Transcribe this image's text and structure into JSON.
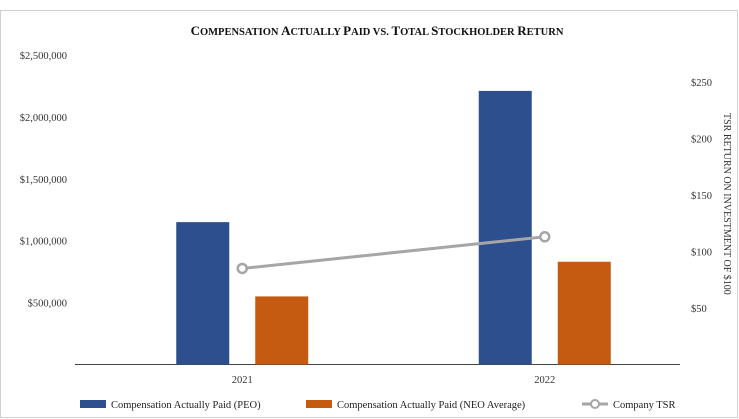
{
  "chart_data": {
    "type": "bar",
    "title": "Compensation Actually Paid vs. Total Stockholder Return",
    "title_parts": [
      {
        "text": "C",
        "big": true
      },
      {
        "text": "OMPENSATION ",
        "big": false
      },
      {
        "text": "A",
        "big": true
      },
      {
        "text": "CTUALLY ",
        "big": false
      },
      {
        "text": "P",
        "big": true
      },
      {
        "text": "AID VS. ",
        "big": false
      },
      {
        "text": "T",
        "big": true
      },
      {
        "text": "OTAL ",
        "big": false
      },
      {
        "text": "S",
        "big": true
      },
      {
        "text": "TOCKHOLDER ",
        "big": false
      },
      {
        "text": "R",
        "big": true
      },
      {
        "text": "ETURN",
        "big": false
      }
    ],
    "categories": [
      "2021",
      "2022"
    ],
    "series": [
      {
        "name": "Compensation Actually Paid (PEO)",
        "type": "bar",
        "axis": "left",
        "color": "#2e4f8e",
        "values": [
          1150000,
          2210000
        ]
      },
      {
        "name": "Compensation Actually Paid (NEO Average)",
        "type": "bar",
        "axis": "left",
        "color": "#c55a11",
        "values": [
          550000,
          830000
        ]
      },
      {
        "name": "Company TSR",
        "type": "line",
        "axis": "right",
        "color": "#a6a6a6",
        "values": [
          85,
          113
        ]
      }
    ],
    "y_left": {
      "ylim": [
        0,
        2500000
      ],
      "ticks": [
        500000,
        1000000,
        1500000,
        2000000,
        2500000
      ],
      "tick_labels": [
        "$500,000",
        "$1,000,000",
        "$1,500,000",
        "$2,000,000",
        "$2,500,000"
      ]
    },
    "y_right": {
      "label": "TSR RETURN ON INVESTMENT OF $100",
      "ylim": [
        0,
        250
      ],
      "ticks": [
        50,
        100,
        150,
        200,
        250
      ],
      "tick_labels": [
        "$50",
        "$100",
        "$150",
        "$200",
        "$250"
      ]
    },
    "grid": false,
    "legend_position": "bottom"
  }
}
